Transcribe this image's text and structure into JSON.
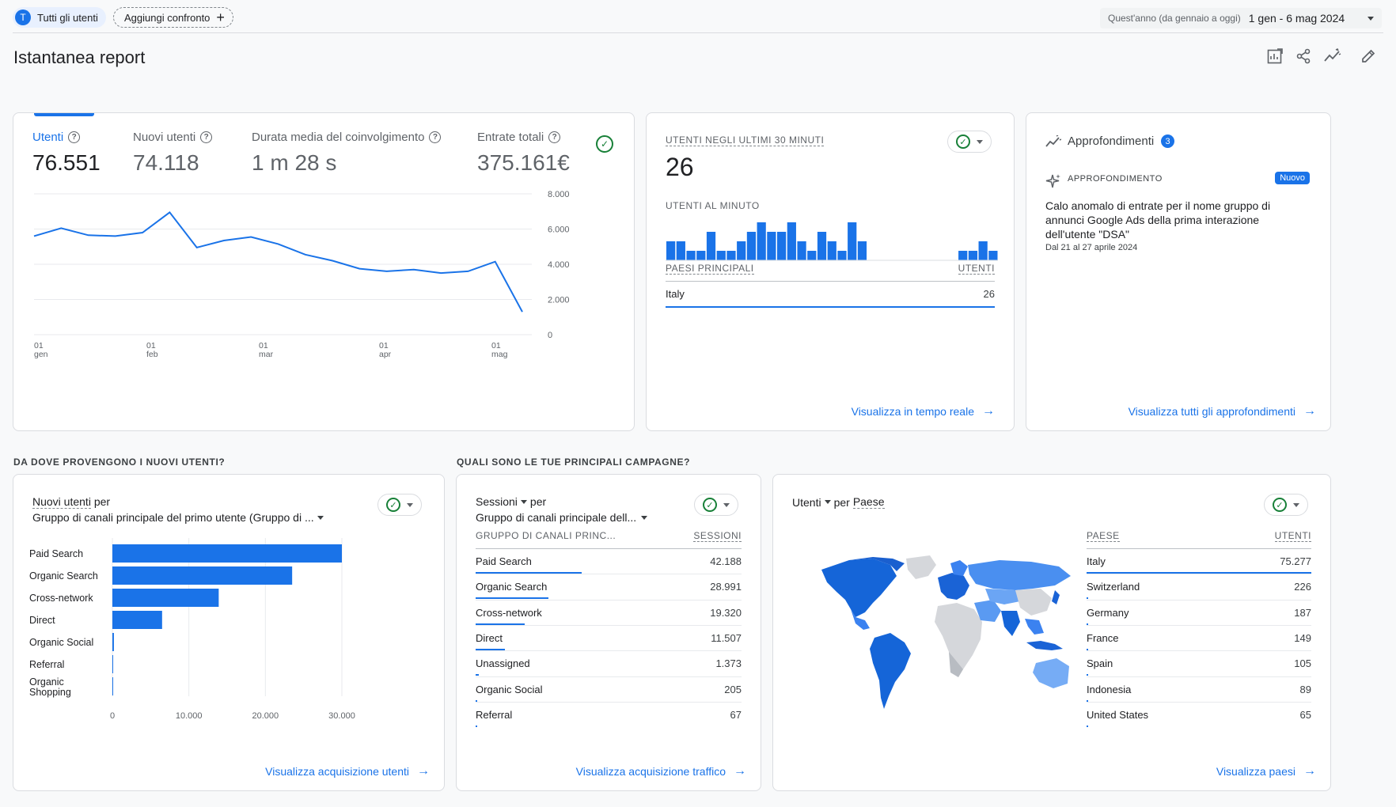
{
  "topbar": {
    "segment_badge": "T",
    "segment_label": "Tutti gli utenti",
    "add_compare": "Aggiungi confronto",
    "date_range_label": "Quest'anno (da gennaio a oggi)",
    "date_range_value": "1 gen - 6 mag 2024"
  },
  "page_title": "Istantanea report",
  "toolbar_icons": [
    "customize-report-icon",
    "share-icon",
    "insights-trend-icon",
    "edit-icon"
  ],
  "overview": {
    "metrics": [
      {
        "label": "Utenti",
        "value": "76.551"
      },
      {
        "label": "Nuovi utenti",
        "value": "74.118"
      },
      {
        "label": "Durata media del coinvolgimento",
        "value": "1 m 28 s"
      },
      {
        "label": "Entrate totali",
        "value": "375.161€"
      }
    ],
    "y_ticks": [
      "8.000",
      "6.000",
      "4.000",
      "2.000",
      "0"
    ],
    "x_ticks": [
      {
        "day": "01",
        "month": "gen"
      },
      {
        "day": "01",
        "month": "feb"
      },
      {
        "day": "01",
        "month": "mar"
      },
      {
        "day": "01",
        "month": "apr"
      },
      {
        "day": "01",
        "month": "mag"
      }
    ]
  },
  "chart_data": {
    "type": "line",
    "series": [
      {
        "values": [
          5600,
          6050,
          5650,
          5600,
          5800,
          6950,
          4950,
          5350,
          5550,
          5150,
          4550,
          4200,
          3750,
          3600,
          3700,
          3500,
          3600,
          4150,
          1300
        ]
      }
    ],
    "ylim": [
      0,
      8000
    ]
  },
  "realtime": {
    "title": "UTENTI NEGLI ULTIMI 30 MINUTI",
    "value": "26",
    "per_minute": "UTENTI AL MINUTO",
    "bars": [
      2,
      2,
      1,
      1,
      3,
      1,
      1,
      2,
      3,
      4,
      3,
      3,
      4,
      2,
      1,
      3,
      2,
      1,
      4,
      2,
      0,
      0,
      0,
      0,
      0,
      0,
      0,
      0,
      0,
      1,
      1,
      2,
      1
    ],
    "col_country": "PAESI PRINCIPALI",
    "col_users": "UTENTI",
    "rows": [
      {
        "label": "Italy",
        "value": "26"
      }
    ],
    "link": "Visualizza in tempo reale"
  },
  "insights": {
    "title": "Approfondimenti",
    "badge": "3",
    "kicker": "APPROFONDIMENTO",
    "new_badge": "Nuovo",
    "text_lines": [
      "Calo anomalo di entrate per il nome gruppo di",
      "annunci Google Ads della prima interazione",
      "dell'utente \"DSA\""
    ],
    "date": "Dal 21 al 27 aprile 2024",
    "link": "Visualizza tutti gli approfondimenti"
  },
  "section1_title": "DA DOVE PROVENGONO I NUOVI UTENTI?",
  "section2_title": "QUALI SONO LE TUE PRINCIPALI CAMPAGNE?",
  "new_users": {
    "title_metric": "Nuovi utenti",
    "title_per": "per",
    "dimension": "Gruppo di canali principale del primo utente (Gruppo di ...",
    "categories": [
      "Paid Search",
      "Organic Search",
      "Cross-network",
      "Direct",
      "Organic Social",
      "Referral",
      "Organic Shopping"
    ],
    "values": [
      30000,
      23500,
      13900,
      6500,
      200,
      70,
      50
    ],
    "x_ticks": [
      "0",
      "10.000",
      "20.000",
      "30.000"
    ],
    "link": "Visualizza acquisizione utenti"
  },
  "sessions": {
    "title_metric": "Sessioni",
    "title_per": "per",
    "dimension": "Gruppo di canali principale dell...",
    "col_dim": "GRUPPO DI CANALI PRINC...",
    "col_val": "SESSIONI",
    "rows": [
      {
        "label": "Paid Search",
        "value": "42.188",
        "num": 42188
      },
      {
        "label": "Organic Search",
        "value": "28.991",
        "num": 28991
      },
      {
        "label": "Cross-network",
        "value": "19.320",
        "num": 19320
      },
      {
        "label": "Direct",
        "value": "11.507",
        "num": 11507
      },
      {
        "label": "Unassigned",
        "value": "1.373",
        "num": 1373
      },
      {
        "label": "Organic Social",
        "value": "205",
        "num": 205
      },
      {
        "label": "Referral",
        "value": "67",
        "num": 67
      }
    ],
    "link": "Visualizza acquisizione traffico"
  },
  "countries": {
    "title_metric": "Utenti",
    "title_per": "per",
    "title_dim": "Paese",
    "col_dim": "PAESE",
    "col_val": "UTENTI",
    "rows": [
      {
        "label": "Italy",
        "value": "75.277",
        "num": 75277
      },
      {
        "label": "Switzerland",
        "value": "226",
        "num": 226
      },
      {
        "label": "Germany",
        "value": "187",
        "num": 187
      },
      {
        "label": "France",
        "value": "149",
        "num": 149
      },
      {
        "label": "Spain",
        "value": "105",
        "num": 105
      },
      {
        "label": "Indonesia",
        "value": "89",
        "num": 89
      },
      {
        "label": "United States",
        "value": "65",
        "num": 65
      }
    ],
    "link": "Visualizza paesi"
  }
}
